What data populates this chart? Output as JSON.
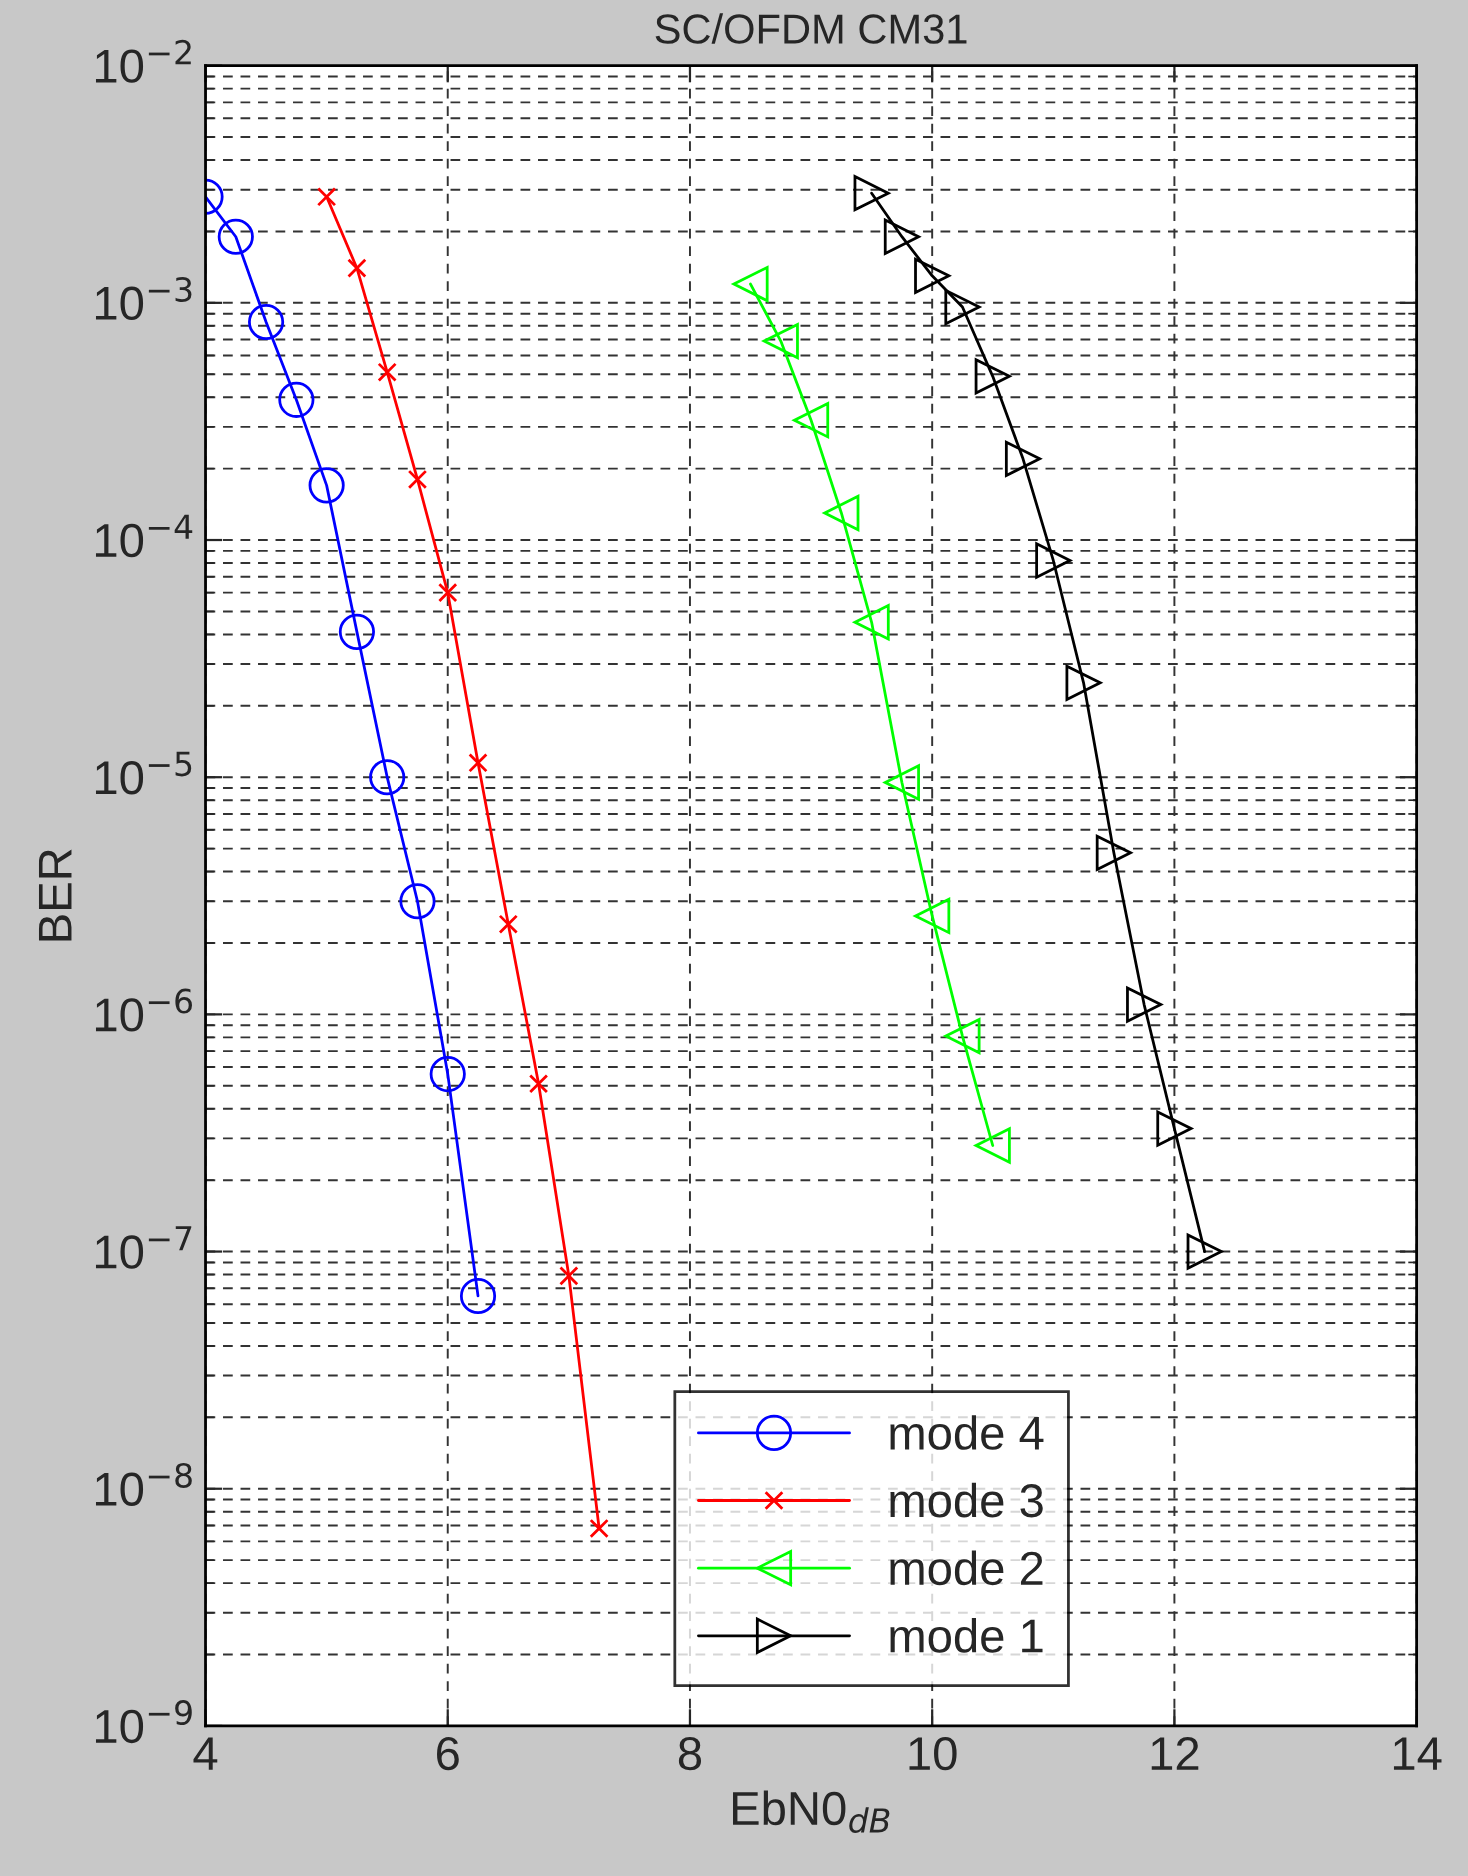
{
  "chart_data": {
    "type": "line",
    "title": "SC/OFDM CM31",
    "xlabel": "EbN0$_{dB}$",
    "ylabel": "BER",
    "log": "y",
    "grid": true,
    "legend": "bottom",
    "xlim": [
      4,
      14
    ],
    "xticks": [
      4,
      6,
      8,
      10,
      12,
      14
    ],
    "ylim": [
      1e-09,
      0.01
    ],
    "yticks": [
      {
        "value": 1e-09,
        "label": "10$^{−9}$"
      },
      {
        "value": 1e-08,
        "label": "10$^{−8}$"
      },
      {
        "value": 1e-07,
        "label": "10$^{−7}$"
      },
      {
        "value": 1e-06,
        "label": "10$^{−6}$"
      },
      {
        "value": 1e-05,
        "label": "10$^{−5}$"
      },
      {
        "value": 0.0001,
        "label": "10$^{−4}$"
      },
      {
        "value": 0.001,
        "label": "10$^{−3}$"
      },
      {
        "value": 0.01,
        "label": "10$^{−2}$"
      }
    ],
    "series": [
      {
        "name": "mode 4",
        "color": "#0000ff",
        "marker": "circle",
        "x": [
          4,
          4.25,
          4.5,
          4.75,
          5,
          5.25,
          5.5,
          5.75,
          6,
          6.25
        ],
        "values": [
          0.0028,
          0.0019,
          0.00083,
          0.00039,
          0.00017,
          4.1e-05,
          1e-05,
          3e-06,
          5.6e-07,
          6.5e-08
        ]
      },
      {
        "name": "mode 3",
        "color": "#ff0000",
        "marker": "cross",
        "x": [
          5,
          5.25,
          5.5,
          5.75,
          6,
          6.25,
          6.5,
          6.75,
          7,
          7.25
        ],
        "values": [
          0.0028,
          0.0014,
          0.00051,
          0.00018,
          6e-05,
          1.15e-05,
          2.4e-06,
          5.1e-07,
          7.9e-08,
          6.8e-09
        ]
      },
      {
        "name": "mode 2",
        "color": "#00ff00",
        "marker": "triangle_left",
        "x": [
          8.5,
          8.75,
          9,
          9.25,
          9.5,
          9.75,
          10,
          10.25,
          10.5
        ],
        "values": [
          0.0012,
          0.00069,
          0.00032,
          0.00013,
          4.5e-05,
          9.5e-06,
          2.6e-06,
          8.1e-07,
          2.8e-07
        ]
      },
      {
        "name": "mode 1",
        "color": "#000000",
        "marker": "triangle_right",
        "x": [
          9.5,
          9.75,
          10,
          10.25,
          10.5,
          10.75,
          11,
          11.25,
          11.5,
          11.75,
          12,
          12.25
        ],
        "values": [
          0.0029,
          0.0019,
          0.0013,
          0.00096,
          0.00049,
          0.00022,
          8.2e-05,
          2.5e-05,
          4.8e-06,
          1.1e-06,
          3.3e-07,
          1e-07
        ]
      }
    ]
  }
}
